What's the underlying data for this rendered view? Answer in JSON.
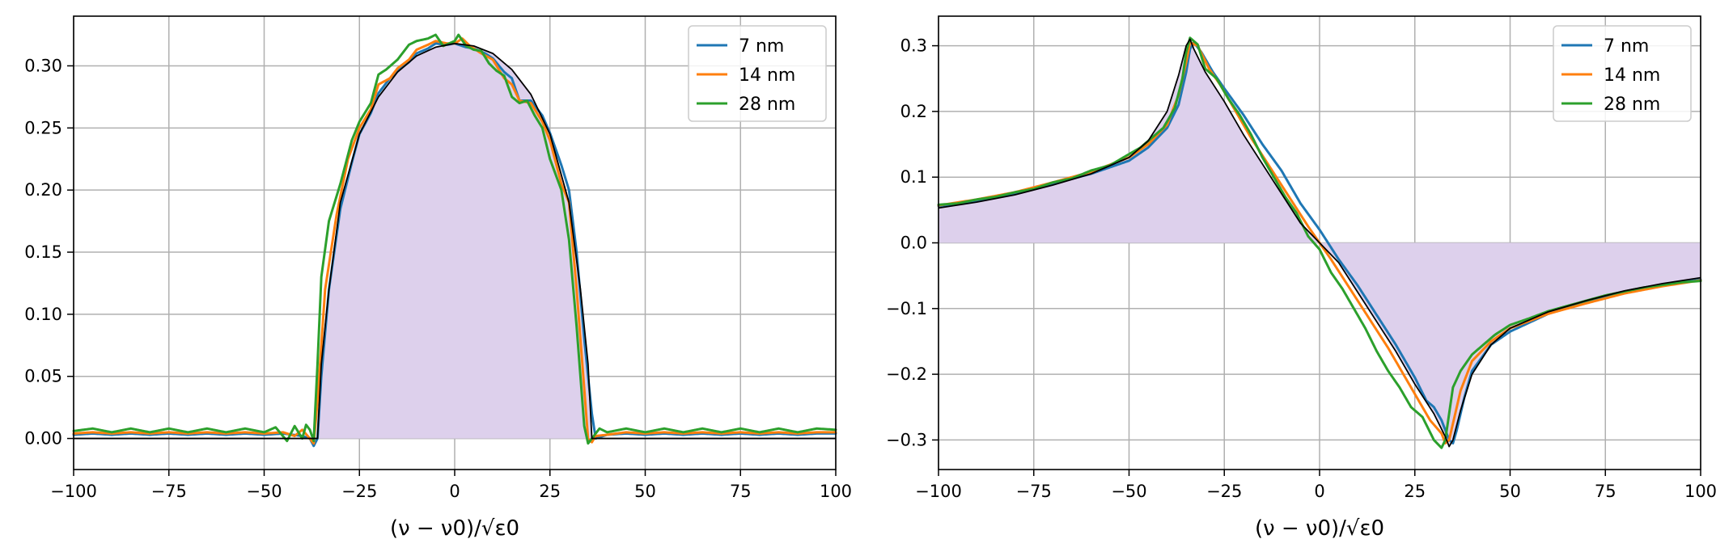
{
  "chart_data": [
    {
      "type": "line",
      "title": "",
      "xlabel": "(ν − ν0)/√ε0",
      "ylabel": "",
      "xlim": [
        -100,
        100
      ],
      "ylim": [
        -0.025,
        0.34
      ],
      "xticks": [
        -100,
        -75,
        -50,
        -25,
        0,
        25,
        50,
        75,
        100
      ],
      "yticks": [
        0.0,
        0.05,
        0.1,
        0.15,
        0.2,
        0.25,
        0.3
      ],
      "ytick_labels": [
        "0.00",
        "0.05",
        "0.10",
        "0.15",
        "0.20",
        "0.25",
        "0.30"
      ],
      "grid": true,
      "legend": "top-right",
      "fill_color": "#ddd0ec",
      "reference": {
        "color": "#000000",
        "x": [
          -100,
          -36,
          -35,
          -33,
          -30,
          -25,
          -20,
          -15,
          -10,
          -5,
          0,
          5,
          10,
          15,
          20,
          25,
          30,
          33,
          35,
          36,
          100
        ],
        "y": [
          0,
          0,
          0.06,
          0.12,
          0.19,
          0.245,
          0.275,
          0.295,
          0.308,
          0.315,
          0.318,
          0.316,
          0.31,
          0.297,
          0.277,
          0.245,
          0.19,
          0.12,
          0.06,
          0,
          0
        ]
      },
      "series": [
        {
          "name": "7 nm",
          "color": "#1f77b4",
          "x": [
            -100,
            -95,
            -90,
            -85,
            -80,
            -75,
            -70,
            -65,
            -60,
            -55,
            -50,
            -45,
            -40,
            -38,
            -37,
            -36,
            -35,
            -33,
            -30,
            -27,
            -25,
            -22,
            -20,
            -17,
            -15,
            -12,
            -10,
            -7,
            -5,
            -2,
            0,
            3,
            5,
            8,
            10,
            13,
            15,
            17,
            20,
            23,
            25,
            28,
            30,
            32,
            34,
            36,
            37,
            38,
            40,
            45,
            50,
            55,
            60,
            65,
            70,
            75,
            80,
            85,
            90,
            95,
            100
          ],
          "y": [
            0.003,
            0.004,
            0.003,
            0.004,
            0.003,
            0.004,
            0.003,
            0.004,
            0.003,
            0.004,
            0.003,
            0.004,
            0.002,
            0.0,
            -0.006,
            0.0,
            0.05,
            0.12,
            0.185,
            0.222,
            0.245,
            0.262,
            0.278,
            0.29,
            0.296,
            0.303,
            0.31,
            0.314,
            0.318,
            0.317,
            0.318,
            0.315,
            0.314,
            0.31,
            0.306,
            0.295,
            0.29,
            0.272,
            0.272,
            0.26,
            0.246,
            0.22,
            0.2,
            0.15,
            0.08,
            0.02,
            0.0,
            0.001,
            0.003,
            0.004,
            0.003,
            0.004,
            0.003,
            0.004,
            0.003,
            0.004,
            0.003,
            0.004,
            0.003,
            0.004,
            0.004
          ]
        },
        {
          "name": "14 nm",
          "color": "#ff7f0e",
          "x": [
            -100,
            -95,
            -90,
            -85,
            -80,
            -75,
            -70,
            -65,
            -60,
            -55,
            -50,
            -45,
            -42,
            -40,
            -38,
            -37,
            -36,
            -34,
            -31,
            -28,
            -25,
            -22,
            -20,
            -17,
            -15,
            -12,
            -10,
            -7,
            -5,
            -2,
            0,
            2,
            4,
            7,
            10,
            13,
            15,
            17,
            20,
            23,
            25,
            28,
            30,
            32,
            34,
            35,
            36,
            37,
            40,
            45,
            50,
            55,
            60,
            65,
            70,
            75,
            80,
            85,
            90,
            95,
            100
          ],
          "y": [
            0.004,
            0.005,
            0.004,
            0.005,
            0.004,
            0.005,
            0.004,
            0.005,
            0.004,
            0.005,
            0.004,
            0.005,
            0.002,
            0.007,
            0.0,
            -0.004,
            0.03,
            0.12,
            0.18,
            0.225,
            0.25,
            0.265,
            0.285,
            0.29,
            0.298,
            0.305,
            0.313,
            0.317,
            0.32,
            0.318,
            0.318,
            0.322,
            0.316,
            0.31,
            0.305,
            0.29,
            0.285,
            0.272,
            0.27,
            0.255,
            0.24,
            0.205,
            0.19,
            0.12,
            0.04,
            0.0,
            -0.003,
            0.002,
            0.003,
            0.005,
            0.004,
            0.005,
            0.004,
            0.005,
            0.004,
            0.005,
            0.004,
            0.005,
            0.004,
            0.005,
            0.005
          ]
        },
        {
          "name": "28 nm",
          "color": "#2ca02c",
          "x": [
            -100,
            -95,
            -90,
            -85,
            -80,
            -75,
            -70,
            -65,
            -60,
            -55,
            -50,
            -47,
            -44,
            -42,
            -40,
            -39,
            -38,
            -37,
            -36,
            -35,
            -33,
            -30,
            -27,
            -25,
            -22,
            -20,
            -18,
            -15,
            -12,
            -10,
            -7,
            -5,
            -3,
            0,
            1,
            3,
            5,
            7,
            9,
            11,
            13,
            15,
            17,
            19,
            21,
            23,
            25,
            28,
            30,
            32,
            34,
            35,
            36,
            38,
            40,
            45,
            50,
            55,
            60,
            65,
            70,
            75,
            80,
            85,
            90,
            95,
            100
          ],
          "y": [
            0.006,
            0.008,
            0.005,
            0.008,
            0.005,
            0.008,
            0.005,
            0.008,
            0.005,
            0.008,
            0.005,
            0.009,
            -0.002,
            0.01,
            0.0,
            0.011,
            0.007,
            -0.002,
            0.06,
            0.13,
            0.175,
            0.205,
            0.24,
            0.255,
            0.27,
            0.293,
            0.297,
            0.305,
            0.317,
            0.32,
            0.322,
            0.325,
            0.316,
            0.32,
            0.325,
            0.316,
            0.313,
            0.312,
            0.302,
            0.296,
            0.292,
            0.275,
            0.27,
            0.272,
            0.26,
            0.25,
            0.225,
            0.2,
            0.16,
            0.09,
            0.01,
            -0.004,
            0.0,
            0.008,
            0.005,
            0.008,
            0.005,
            0.008,
            0.005,
            0.008,
            0.005,
            0.008,
            0.005,
            0.008,
            0.005,
            0.008,
            0.007
          ]
        }
      ]
    },
    {
      "type": "line",
      "title": "",
      "xlabel": "(ν − ν0)/√ε0",
      "ylabel": "",
      "xlim": [
        -100,
        100
      ],
      "ylim": [
        -0.345,
        0.345
      ],
      "xticks": [
        -100,
        -75,
        -50,
        -25,
        0,
        25,
        50,
        75,
        100
      ],
      "yticks": [
        -0.3,
        -0.2,
        -0.1,
        0.0,
        0.1,
        0.2,
        0.3
      ],
      "ytick_labels": [
        "−0.3",
        "−0.2",
        "−0.1",
        "0.0",
        "0.1",
        "0.2",
        "0.3"
      ],
      "grid": true,
      "legend": "top-right",
      "fill_color": "#ddd0ec",
      "reference": {
        "color": "#000000",
        "x": [
          -100,
          -90,
          -80,
          -70,
          -60,
          -50,
          -45,
          -40,
          -37,
          -35,
          -34,
          -33,
          -30,
          -25,
          -20,
          -15,
          -10,
          -5,
          0,
          5,
          10,
          15,
          20,
          25,
          30,
          33,
          34,
          35,
          37,
          40,
          45,
          50,
          60,
          70,
          80,
          90,
          100
        ],
        "y": [
          0.053,
          0.062,
          0.073,
          0.088,
          0.105,
          0.13,
          0.155,
          0.2,
          0.255,
          0.3,
          0.31,
          0.295,
          0.26,
          0.215,
          0.165,
          0.12,
          0.075,
          0.03,
          0.0,
          -0.03,
          -0.075,
          -0.12,
          -0.165,
          -0.215,
          -0.26,
          -0.295,
          -0.31,
          -0.3,
          -0.255,
          -0.2,
          -0.155,
          -0.13,
          -0.105,
          -0.088,
          -0.073,
          -0.062,
          -0.053
        ]
      },
      "series": [
        {
          "name": "7 nm",
          "color": "#1f77b4",
          "x": [
            -100,
            -90,
            -80,
            -70,
            -60,
            -50,
            -45,
            -40,
            -37,
            -35,
            -34,
            -33,
            -31,
            -28,
            -25,
            -20,
            -15,
            -10,
            -5,
            0,
            5,
            10,
            15,
            20,
            25,
            28,
            30,
            32,
            34,
            35,
            36,
            38,
            40,
            45,
            50,
            60,
            70,
            80,
            90,
            100
          ],
          "y": [
            0.056,
            0.064,
            0.075,
            0.09,
            0.105,
            0.125,
            0.145,
            0.175,
            0.21,
            0.26,
            0.295,
            0.305,
            0.29,
            0.26,
            0.235,
            0.195,
            0.15,
            0.11,
            0.06,
            0.02,
            -0.025,
            -0.065,
            -0.11,
            -0.155,
            -0.205,
            -0.24,
            -0.25,
            -0.27,
            -0.3,
            -0.305,
            -0.285,
            -0.235,
            -0.195,
            -0.155,
            -0.135,
            -0.108,
            -0.09,
            -0.075,
            -0.064,
            -0.056
          ]
        },
        {
          "name": "14 nm",
          "color": "#ff7f0e",
          "x": [
            -100,
            -90,
            -80,
            -70,
            -60,
            -50,
            -45,
            -40,
            -37,
            -35,
            -34,
            -32,
            -29,
            -26,
            -22,
            -18,
            -13,
            -8,
            -3,
            0,
            3,
            8,
            13,
            18,
            22,
            26,
            29,
            32,
            33,
            34,
            35,
            37,
            40,
            45,
            50,
            60,
            70,
            80,
            90,
            100
          ],
          "y": [
            0.057,
            0.066,
            0.077,
            0.092,
            0.108,
            0.13,
            0.15,
            0.18,
            0.225,
            0.275,
            0.305,
            0.3,
            0.265,
            0.24,
            0.2,
            0.16,
            0.115,
            0.07,
            0.025,
            0.0,
            -0.025,
            -0.07,
            -0.115,
            -0.16,
            -0.2,
            -0.24,
            -0.27,
            -0.29,
            -0.305,
            -0.3,
            -0.275,
            -0.225,
            -0.18,
            -0.15,
            -0.13,
            -0.108,
            -0.092,
            -0.077,
            -0.066,
            -0.057
          ]
        },
        {
          "name": "28 nm",
          "color": "#2ca02c",
          "x": [
            -100,
            -95,
            -90,
            -85,
            -80,
            -75,
            -70,
            -65,
            -60,
            -55,
            -50,
            -47,
            -44,
            -41,
            -38,
            -36,
            -35,
            -34,
            -32,
            -30,
            -27,
            -24,
            -21,
            -18,
            -15,
            -12,
            -9,
            -6,
            -3,
            0,
            3,
            6,
            9,
            12,
            15,
            18,
            21,
            24,
            27,
            30,
            32,
            33,
            34,
            35,
            37,
            40,
            43,
            46,
            50,
            55,
            60,
            65,
            70,
            75,
            80,
            85,
            90,
            95,
            100
          ],
          "y": [
            0.058,
            0.06,
            0.066,
            0.07,
            0.077,
            0.082,
            0.092,
            0.098,
            0.11,
            0.118,
            0.135,
            0.145,
            0.16,
            0.175,
            0.205,
            0.25,
            0.29,
            0.312,
            0.302,
            0.265,
            0.25,
            0.22,
            0.195,
            0.165,
            0.13,
            0.1,
            0.07,
            0.045,
            0.01,
            -0.01,
            -0.045,
            -0.07,
            -0.1,
            -0.13,
            -0.165,
            -0.195,
            -0.22,
            -0.25,
            -0.265,
            -0.3,
            -0.312,
            -0.3,
            -0.26,
            -0.22,
            -0.195,
            -0.17,
            -0.155,
            -0.14,
            -0.125,
            -0.115,
            -0.104,
            -0.096,
            -0.088,
            -0.08,
            -0.074,
            -0.068,
            -0.064,
            -0.06,
            -0.058
          ]
        }
      ]
    }
  ]
}
